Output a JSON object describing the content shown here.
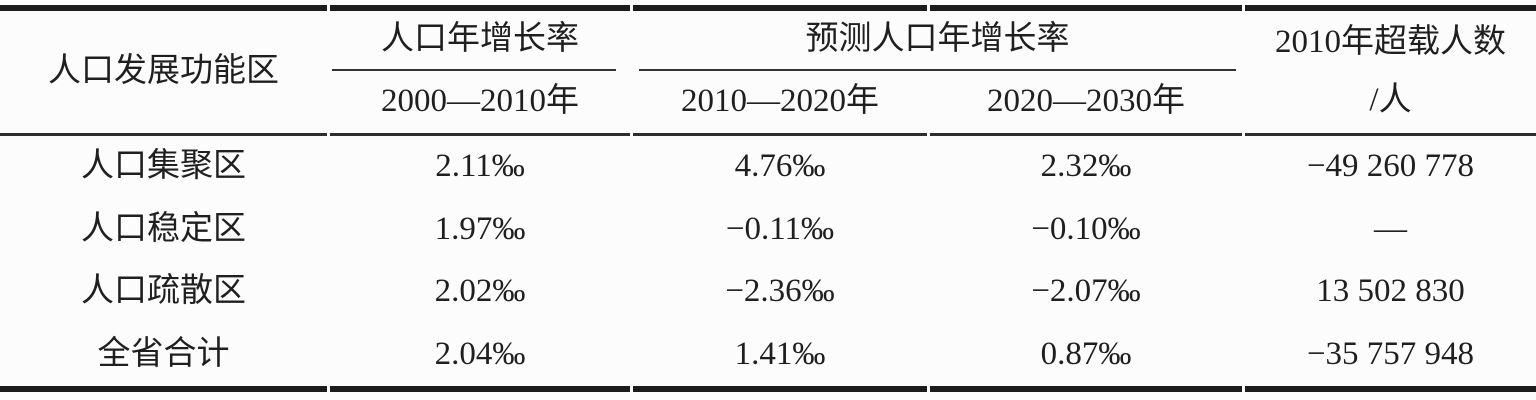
{
  "colors": {
    "background": "#fcfcfc",
    "text": "#1f1f1f",
    "rule": "#1c1c1c"
  },
  "table": {
    "headers": {
      "zone": "人口发展功能区",
      "growth_group": "人口年增长率",
      "growth_period": "2000—2010年",
      "forecast_group": "预测人口年增长率",
      "forecast_period_1": "2010—2020年",
      "forecast_period_2": "2020—2030年",
      "overload_line1": "2010年超载人数",
      "overload_line2": "/人"
    },
    "rows": [
      {
        "zone": "人口集聚区",
        "rate_2000_2010": "2.11‰",
        "rate_2010_2020": "4.76‰",
        "rate_2020_2030": "2.32‰",
        "overload_2010": "−49 260 778"
      },
      {
        "zone": "人口稳定区",
        "rate_2000_2010": "1.97‰",
        "rate_2010_2020": "−0.11‰",
        "rate_2020_2030": "−0.10‰",
        "overload_2010": "—"
      },
      {
        "zone": "人口疏散区",
        "rate_2000_2010": "2.02‰",
        "rate_2010_2020": "−2.36‰",
        "rate_2020_2030": "−2.07‰",
        "overload_2010": "13 502 830"
      },
      {
        "zone": "全省合计",
        "rate_2000_2010": "2.04‰",
        "rate_2010_2020": "1.41‰",
        "rate_2020_2030": "0.87‰",
        "overload_2010": "−35 757 948"
      }
    ]
  },
  "chart_data": {
    "type": "table",
    "columns": [
      "人口发展功能区",
      "人口年增长率 2000—2010年",
      "预测人口年增长率 2010—2020年",
      "预测人口年增长率 2020—2030年",
      "2010年超载人数/人"
    ],
    "rows": [
      [
        "人口集聚区",
        "2.11‰",
        "4.76‰",
        "2.32‰",
        "−49 260 778"
      ],
      [
        "人口稳定区",
        "1.97‰",
        "−0.11‰",
        "−0.10‰",
        "—"
      ],
      [
        "人口疏散区",
        "2.02‰",
        "−2.36‰",
        "−2.07‰",
        "13 502 830"
      ],
      [
        "全省合计",
        "2.04‰",
        "1.41‰",
        "0.87‰",
        "−35 757 948"
      ]
    ]
  }
}
